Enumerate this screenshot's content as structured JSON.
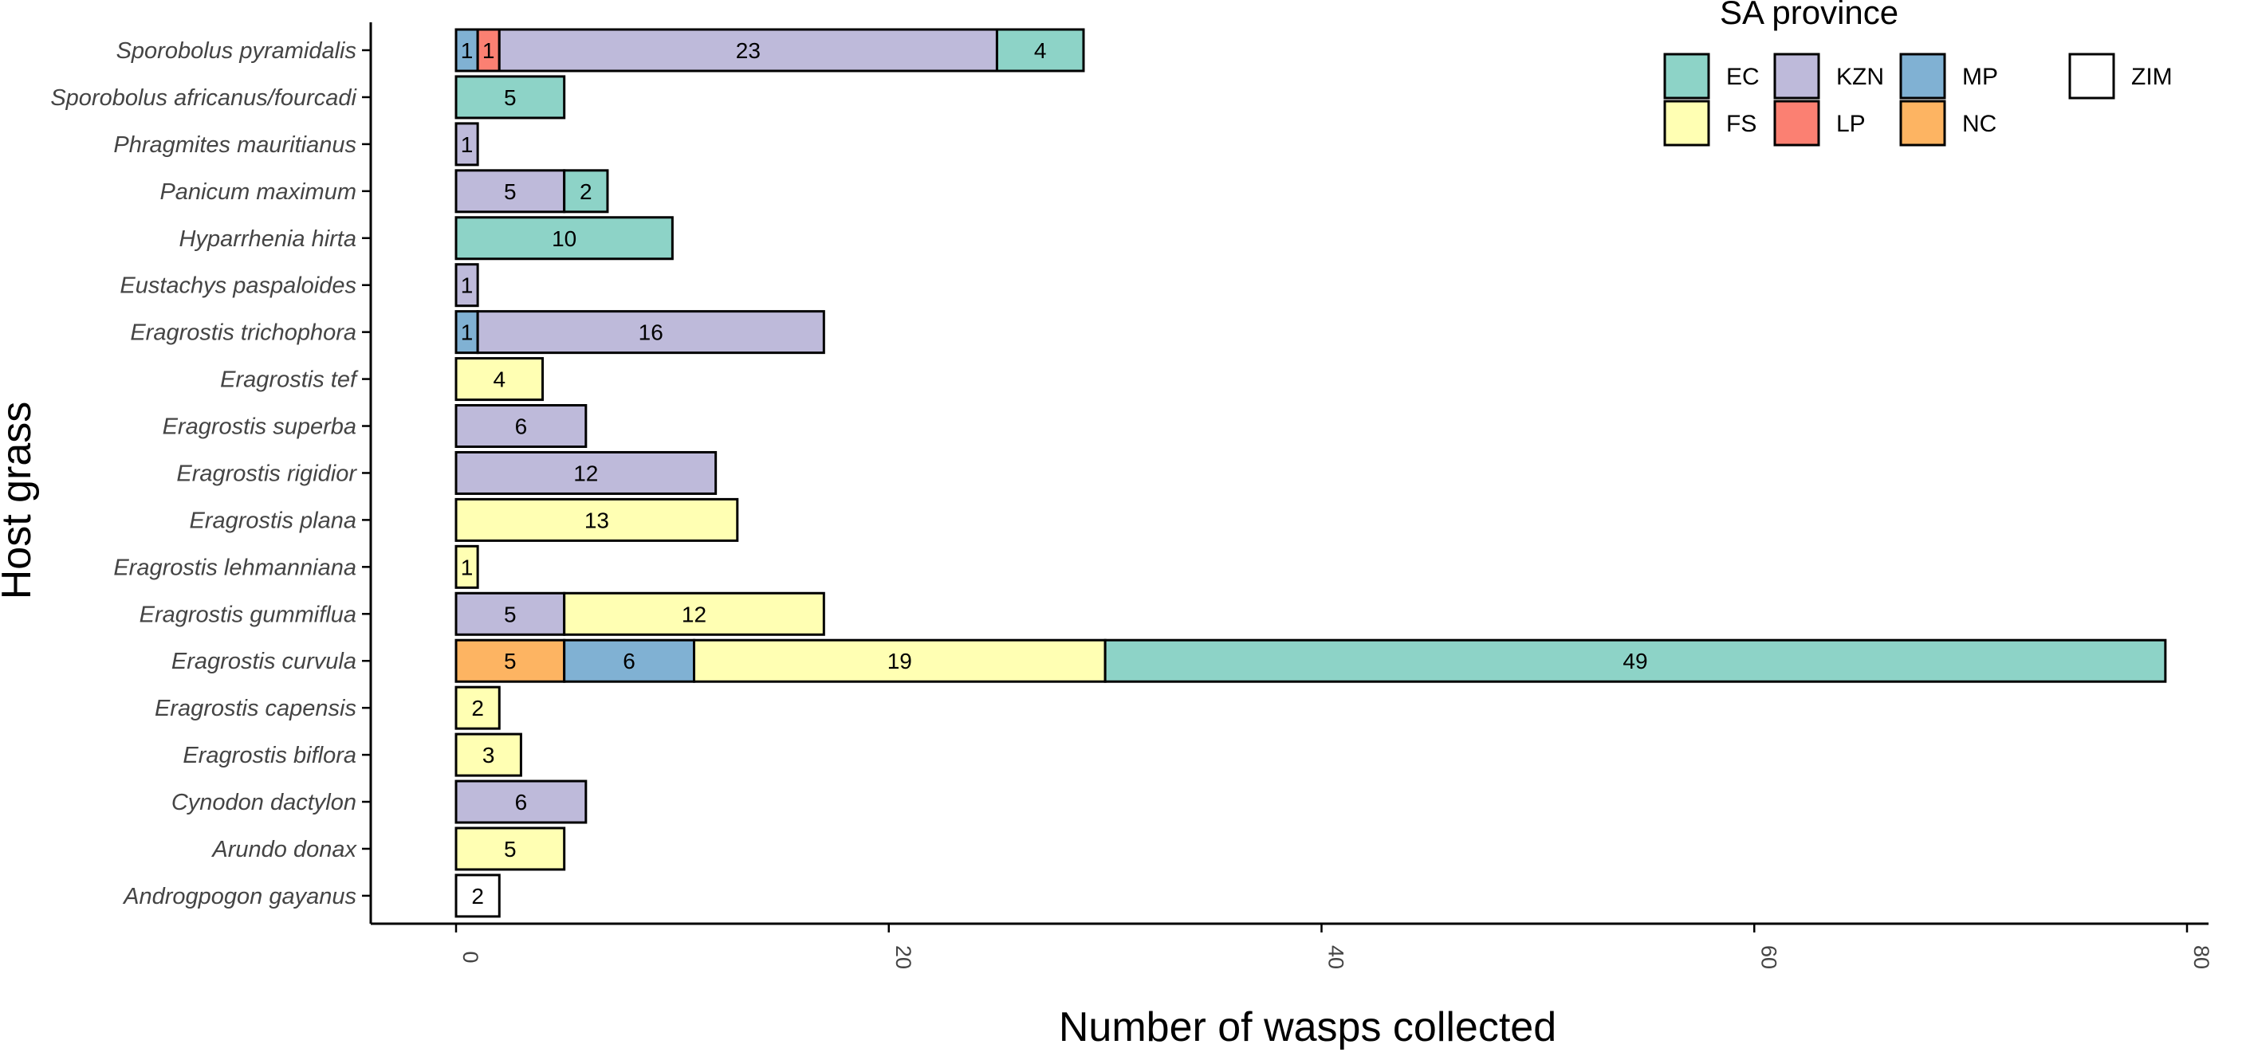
{
  "chart_data": {
    "type": "bar",
    "orientation": "horizontal",
    "stacked": true,
    "xlabel": "Number of wasps collected",
    "ylabel": "Host grass",
    "xlim": [
      0,
      80
    ],
    "x_ticks": [
      0,
      20,
      40,
      60,
      80
    ],
    "grid": false,
    "legend": {
      "title": "SA province",
      "placement": "top-right",
      "items": [
        {
          "key": "EC",
          "color": "#8DD3C7"
        },
        {
          "key": "KZN",
          "color": "#BEBADA"
        },
        {
          "key": "MP",
          "color": "#80B1D3"
        },
        {
          "key": "ZIM",
          "color": "#FFFFFF"
        },
        {
          "key": "FS",
          "color": "#FFFFB3"
        },
        {
          "key": "LP",
          "color": "#FB8072"
        },
        {
          "key": "NC",
          "color": "#FDB462"
        }
      ]
    },
    "categories": [
      {
        "name": "Sporobolus pyramidalis",
        "segments": [
          {
            "province": "MP",
            "value": 1
          },
          {
            "province": "LP",
            "value": 1
          },
          {
            "province": "KZN",
            "value": 23
          },
          {
            "province": "EC",
            "value": 4
          }
        ]
      },
      {
        "name": "Sporobolus africanus/fourcadi",
        "segments": [
          {
            "province": "EC",
            "value": 5
          }
        ]
      },
      {
        "name": "Phragmites mauritianus",
        "segments": [
          {
            "province": "KZN",
            "value": 1
          }
        ]
      },
      {
        "name": "Panicum maximum",
        "segments": [
          {
            "province": "KZN",
            "value": 5
          },
          {
            "province": "EC",
            "value": 2
          }
        ]
      },
      {
        "name": "Hyparrhenia hirta",
        "segments": [
          {
            "province": "EC",
            "value": 10
          }
        ]
      },
      {
        "name": "Eustachys paspaloides",
        "segments": [
          {
            "province": "KZN",
            "value": 1
          }
        ]
      },
      {
        "name": "Eragrostis trichophora",
        "segments": [
          {
            "province": "MP",
            "value": 1
          },
          {
            "province": "KZN",
            "value": 16
          }
        ]
      },
      {
        "name": "Eragrostis tef",
        "segments": [
          {
            "province": "FS",
            "value": 4
          }
        ]
      },
      {
        "name": "Eragrostis superba",
        "segments": [
          {
            "province": "KZN",
            "value": 6
          }
        ]
      },
      {
        "name": "Eragrostis rigidior",
        "segments": [
          {
            "province": "KZN",
            "value": 12
          }
        ]
      },
      {
        "name": "Eragrostis plana",
        "segments": [
          {
            "province": "FS",
            "value": 13
          }
        ]
      },
      {
        "name": "Eragrostis lehmanniana",
        "segments": [
          {
            "province": "FS",
            "value": 1
          }
        ]
      },
      {
        "name": "Eragrostis gummiflua",
        "segments": [
          {
            "province": "KZN",
            "value": 5
          },
          {
            "province": "FS",
            "value": 12
          }
        ]
      },
      {
        "name": "Eragrostis curvula",
        "segments": [
          {
            "province": "NC",
            "value": 5
          },
          {
            "province": "MP",
            "value": 6
          },
          {
            "province": "FS",
            "value": 19
          },
          {
            "province": "EC",
            "value": 49
          }
        ]
      },
      {
        "name": "Eragrostis capensis",
        "segments": [
          {
            "province": "FS",
            "value": 2
          }
        ]
      },
      {
        "name": "Eragrostis biflora",
        "segments": [
          {
            "province": "FS",
            "value": 3
          }
        ]
      },
      {
        "name": "Cynodon dactylon",
        "segments": [
          {
            "province": "KZN",
            "value": 6
          }
        ]
      },
      {
        "name": "Arundo donax",
        "segments": [
          {
            "province": "FS",
            "value": 5
          }
        ]
      },
      {
        "name": "Androgpogon gayanus",
        "segments": [
          {
            "province": "ZIM",
            "value": 2
          }
        ]
      }
    ]
  }
}
